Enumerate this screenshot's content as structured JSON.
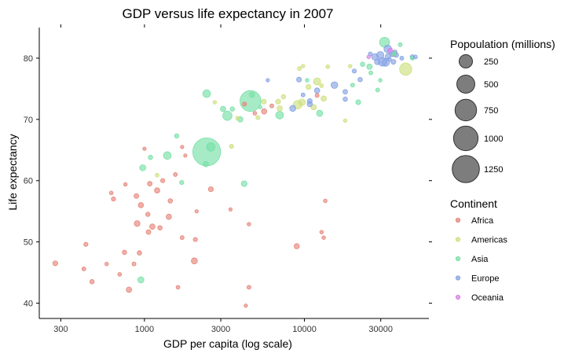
{
  "chart_data": {
    "type": "scatter",
    "title": "GDP versus life expectancy in 2007",
    "xlabel": "GDP per capita (log scale)",
    "ylabel": "Life expectancy",
    "x_scale": "log",
    "xlim": [
      220,
      60000
    ],
    "ylim": [
      37.5,
      85
    ],
    "x_ticks": [
      300,
      1000,
      3000,
      10000,
      30000
    ],
    "x_tick_labels": [
      "300",
      "1000",
      "3000",
      "10000",
      "30000"
    ],
    "y_ticks": [
      40,
      50,
      60,
      70,
      80
    ],
    "y_tick_labels": [
      "40",
      "50",
      "60",
      "70",
      "80"
    ],
    "grid": false,
    "legend_position": "right",
    "size_legend": {
      "title": "Popoulation (millions)",
      "values": [
        250,
        500,
        750,
        1000,
        1250
      ],
      "labels": [
        "250",
        "500",
        "750",
        "1000",
        "1250"
      ],
      "color": "#666666"
    },
    "color_legend": {
      "title": "Continent",
      "entries": [
        "Africa",
        "Americas",
        "Asia",
        "Europe",
        "Oceania"
      ]
    },
    "colors": {
      "Africa": "#e6857a",
      "Americas": "#cde17f",
      "Asia": "#78e0a7",
      "Europe": "#86a3e4",
      "Oceania": "#d883e2"
    },
    "series": [
      {
        "name": "Africa",
        "points": [
          [
            277,
            46.5,
            15
          ],
          [
            418,
            45.6,
            6
          ],
          [
            430,
            49.6,
            8
          ],
          [
            470,
            43.5,
            10
          ],
          [
            580,
            46.4,
            4
          ],
          [
            620,
            58.0,
            5
          ],
          [
            640,
            57.0,
            8
          ],
          [
            700,
            44.7,
            5
          ],
          [
            750,
            48.3,
            10
          ],
          [
            760,
            59.4,
            4
          ],
          [
            800,
            42.2,
            20
          ],
          [
            860,
            46.4,
            6
          ],
          [
            890,
            57.5,
            12
          ],
          [
            900,
            53.0,
            25
          ],
          [
            930,
            48.2,
            10
          ],
          [
            950,
            56.0,
            18
          ],
          [
            1000,
            65.2,
            3
          ],
          [
            1050,
            54.5,
            9
          ],
          [
            1060,
            51.6,
            12
          ],
          [
            1080,
            59.5,
            12
          ],
          [
            1120,
            52.5,
            20
          ],
          [
            1200,
            58.4,
            20
          ],
          [
            1250,
            52.3,
            10
          ],
          [
            1300,
            60.0,
            8
          ],
          [
            1420,
            54.1,
            20
          ],
          [
            1450,
            56.7,
            10
          ],
          [
            1560,
            61.0,
            6
          ],
          [
            1620,
            42.6,
            5
          ],
          [
            1720,
            50.7,
            6
          ],
          [
            1720,
            65.5,
            3
          ],
          [
            1800,
            64.1,
            3
          ],
          [
            2050,
            46.9,
            30
          ],
          [
            2080,
            50.4,
            8
          ],
          [
            2120,
            55.0,
            3
          ],
          [
            2600,
            58.6,
            15
          ],
          [
            3450,
            55.3,
            3
          ],
          [
            4220,
            72.5,
            8
          ],
          [
            4300,
            39.6,
            3
          ],
          [
            4500,
            52.9,
            4
          ],
          [
            4500,
            42.6,
            6
          ],
          [
            4900,
            71.0,
            5
          ],
          [
            5600,
            71.3,
            20
          ],
          [
            6250,
            72.2,
            6
          ],
          [
            8950,
            49.3,
            18
          ],
          [
            12000,
            73.9,
            6
          ],
          [
            12800,
            51.6,
            4
          ],
          [
            13200,
            50.7,
            4
          ],
          [
            13500,
            56.7,
            4
          ]
        ]
      },
      {
        "name": "Americas",
        "points": [
          [
            1200,
            60.9,
            5
          ],
          [
            2750,
            72.8,
            4
          ],
          [
            3500,
            65.6,
            8
          ],
          [
            3820,
            70.2,
            6
          ],
          [
            5120,
            70.3,
            7
          ],
          [
            5580,
            72.9,
            14
          ],
          [
            6850,
            72.9,
            15
          ],
          [
            7000,
            71.8,
            20
          ],
          [
            7400,
            73.7,
            10
          ],
          [
            9060,
            72.4,
            80
          ],
          [
            9300,
            78.3,
            6
          ],
          [
            9650,
            72.8,
            40
          ],
          [
            9800,
            78.7,
            4
          ],
          [
            10600,
            75.3,
            15
          ],
          [
            11400,
            72.0,
            22
          ],
          [
            12000,
            76.2,
            50
          ],
          [
            12800,
            75.5,
            6
          ],
          [
            13200,
            73.4,
            20
          ],
          [
            14000,
            78.6,
            6
          ],
          [
            18000,
            69.8,
            4
          ],
          [
            19300,
            78.7,
            4
          ],
          [
            36300,
            80.7,
            28
          ],
          [
            42950,
            78.2,
            200
          ]
        ]
      },
      {
        "name": "Asia",
        "points": [
          [
            950,
            43.8,
            30
          ],
          [
            975,
            62.1,
            30
          ],
          [
            1090,
            63.8,
            10
          ],
          [
            1390,
            64.1,
            60
          ],
          [
            1590,
            67.3,
            10
          ],
          [
            1710,
            59.7,
            8
          ],
          [
            2420,
            62.7,
            20
          ],
          [
            2450,
            64.7,
            1318
          ],
          [
            2600,
            65.5,
            80
          ],
          [
            2450,
            74.2,
            60
          ],
          [
            3100,
            71.7,
            20
          ],
          [
            3300,
            70.6,
            100
          ],
          [
            3540,
            71.7,
            10
          ],
          [
            4200,
            59.5,
            25
          ],
          [
            3970,
            70.0,
            20
          ],
          [
            4600,
            73.0,
            700
          ],
          [
            4700,
            74.0,
            20
          ],
          [
            5300,
            72.0,
            3
          ],
          [
            7000,
            70.7,
            60
          ],
          [
            10400,
            76.4,
            4
          ],
          [
            12450,
            71.0,
            30
          ],
          [
            21700,
            72.8,
            15
          ],
          [
            23100,
            79.0,
            10
          ],
          [
            25500,
            78.6,
            20
          ],
          [
            28700,
            74.8,
            6
          ],
          [
            31700,
            82.6,
            120
          ],
          [
            36300,
            80.7,
            4
          ],
          [
            39700,
            82.2,
            6
          ],
          [
            47300,
            80.0,
            6
          ],
          [
            29800,
            76.4,
            4
          ],
          [
            20000,
            75.6,
            6
          ],
          [
            26000,
            77.6,
            6
          ]
        ]
      },
      {
        "name": "Europe",
        "points": [
          [
            5900,
            76.4,
            3
          ],
          [
            8450,
            71.8,
            30
          ],
          [
            9250,
            76.5,
            15
          ],
          [
            9800,
            74.0,
            6
          ],
          [
            10800,
            72.5,
            18
          ],
          [
            10800,
            73.0,
            14
          ],
          [
            12000,
            74.7,
            20
          ],
          [
            15400,
            75.6,
            40
          ],
          [
            18000,
            74.5,
            12
          ],
          [
            18000,
            73.3,
            10
          ],
          [
            20500,
            77.9,
            8
          ],
          [
            22300,
            76.5,
            10
          ],
          [
            25800,
            80.7,
            6
          ],
          [
            27600,
            80.2,
            40
          ],
          [
            28600,
            79.4,
            25
          ],
          [
            29800,
            80.5,
            50
          ],
          [
            30800,
            79.4,
            80
          ],
          [
            33300,
            80.3,
            20
          ],
          [
            32200,
            79.3,
            60
          ],
          [
            33200,
            81.5,
            60
          ],
          [
            36000,
            79.4,
            15
          ],
          [
            36800,
            81.0,
            8
          ],
          [
            37500,
            80.5,
            12
          ],
          [
            40600,
            80.0,
            6
          ],
          [
            47300,
            80.2,
            10
          ],
          [
            49400,
            80.2,
            6
          ],
          [
            35300,
            80.6,
            10
          ],
          [
            34000,
            79.8,
            6
          ]
        ]
      },
      {
        "name": "Oceania",
        "points": [
          [
            25200,
            80.2,
            4
          ],
          [
            34400,
            81.2,
            20
          ]
        ]
      }
    ]
  }
}
